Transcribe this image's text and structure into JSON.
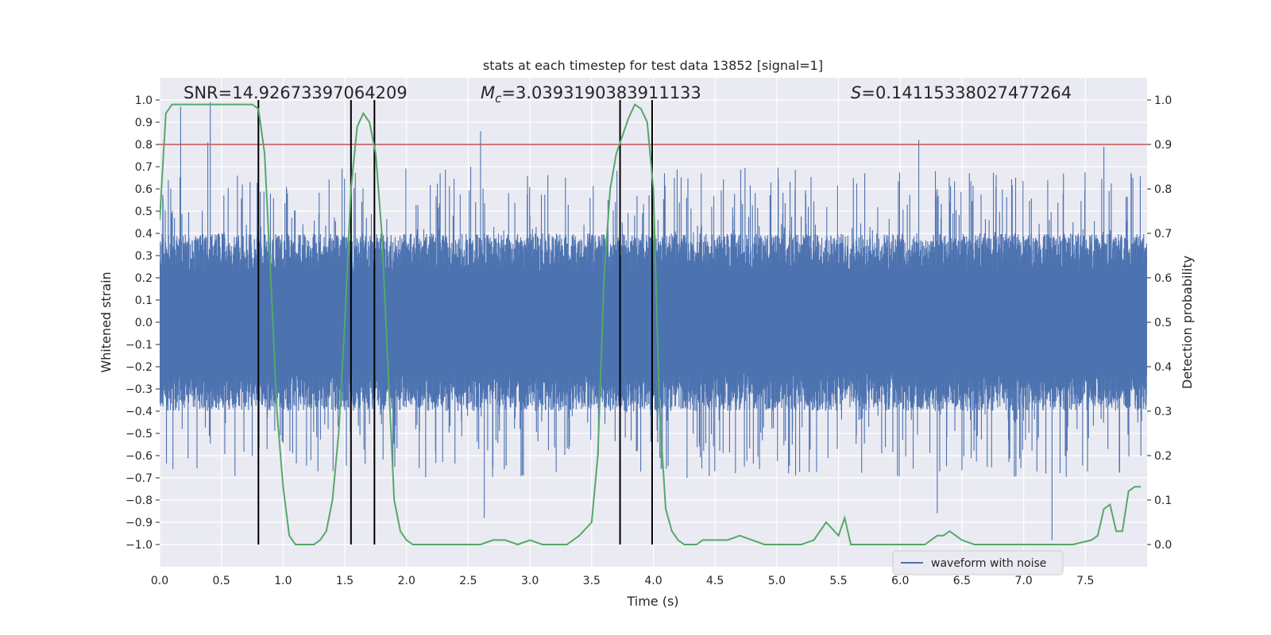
{
  "chart_data": {
    "type": "line",
    "title": "stats at each timestep for test data 13852 [signal=1]",
    "xlabel": "Time (s)",
    "ylabel": "Whitened strain",
    "y2label": "Detection probability",
    "xlim": [
      0,
      8
    ],
    "ylim": [
      -1.1,
      1.1
    ],
    "y2lim": [
      -0.05,
      1.05
    ],
    "xticks": [
      "0.0",
      "0.5",
      "1.0",
      "1.5",
      "2.0",
      "2.5",
      "3.0",
      "3.5",
      "4.0",
      "4.5",
      "5.0",
      "5.5",
      "6.0",
      "6.5",
      "7.0",
      "7.5"
    ],
    "yticks": [
      "1.0",
      "0.9",
      "0.8",
      "0.7",
      "0.6",
      "0.5",
      "0.4",
      "0.3",
      "0.2",
      "0.1",
      "0.0",
      "-0.1",
      "-0.2",
      "-0.3",
      "-0.4",
      "-0.5",
      "-0.6",
      "-0.7",
      "-0.8",
      "-0.9",
      "-1.0"
    ],
    "y2ticks": [
      "1.0",
      "0.9",
      "0.8",
      "0.7",
      "0.6",
      "0.5",
      "0.4",
      "0.3",
      "0.2",
      "0.1",
      "0.0"
    ],
    "grid": true,
    "legend": {
      "placement": "lower-right",
      "entries": [
        "waveform with noise"
      ]
    },
    "annotations": {
      "snr": "SNR=14.92673397064209",
      "mc_symbol": "M",
      "mc_subscript": "c",
      "mc_value": "=3.0393190383911133",
      "s_symbol": "S",
      "s_value": "=0.14115338027477264"
    },
    "threshold": 0.9,
    "vertical_lines": [
      0.8,
      1.55,
      1.74,
      3.73,
      3.99
    ],
    "waveform": {
      "name": "waveform with noise",
      "amplitude_band": [
        -0.4,
        0.4
      ],
      "peaks": [
        {
          "x": 0.17,
          "y": 0.97
        },
        {
          "x": 0.41,
          "y": 0.99
        },
        {
          "x": 0.39,
          "y": 0.81
        },
        {
          "x": 2.6,
          "y": 0.86
        },
        {
          "x": 6.15,
          "y": 0.82
        },
        {
          "x": 7.23,
          "y": -0.98
        },
        {
          "x": 2.63,
          "y": -0.88
        },
        {
          "x": 6.3,
          "y": -0.86
        },
        {
          "x": 7.65,
          "y": 0.79
        }
      ]
    },
    "probability": {
      "x": [
        0.0,
        0.05,
        0.1,
        0.15,
        0.2,
        0.3,
        0.4,
        0.5,
        0.6,
        0.7,
        0.75,
        0.8,
        0.85,
        0.9,
        0.95,
        1.0,
        1.05,
        1.1,
        1.15,
        1.2,
        1.25,
        1.3,
        1.35,
        1.4,
        1.45,
        1.5,
        1.55,
        1.6,
        1.65,
        1.7,
        1.75,
        1.8,
        1.85,
        1.9,
        1.95,
        2.0,
        2.05,
        2.1,
        2.15,
        2.2,
        2.3,
        2.4,
        2.5,
        2.6,
        2.7,
        2.8,
        2.9,
        3.0,
        3.1,
        3.2,
        3.3,
        3.4,
        3.5,
        3.55,
        3.6,
        3.65,
        3.7,
        3.75,
        3.8,
        3.85,
        3.9,
        3.95,
        4.0,
        4.05,
        4.1,
        4.15,
        4.2,
        4.25,
        4.3,
        4.35,
        4.4,
        4.5,
        4.6,
        4.7,
        4.8,
        4.9,
        5.0,
        5.1,
        5.2,
        5.3,
        5.4,
        5.5,
        5.55,
        5.6,
        5.7,
        5.8,
        5.9,
        6.0,
        6.1,
        6.2,
        6.3,
        6.35,
        6.4,
        6.45,
        6.5,
        6.6,
        6.7,
        6.8,
        7.0,
        7.2,
        7.4,
        7.55,
        7.6,
        7.65,
        7.7,
        7.75,
        7.8,
        7.85,
        7.9,
        7.95
      ],
      "y": [
        0.73,
        0.97,
        0.99,
        0.99,
        0.99,
        0.99,
        0.99,
        0.99,
        0.99,
        0.99,
        0.99,
        0.98,
        0.88,
        0.6,
        0.3,
        0.13,
        0.02,
        0.0,
        0.0,
        0.0,
        0.0,
        0.01,
        0.03,
        0.1,
        0.25,
        0.5,
        0.8,
        0.94,
        0.97,
        0.95,
        0.88,
        0.7,
        0.4,
        0.1,
        0.03,
        0.01,
        0.0,
        0.0,
        0.0,
        0.0,
        0.0,
        0.0,
        0.0,
        0.0,
        0.01,
        0.01,
        0.0,
        0.01,
        0.0,
        0.0,
        0.0,
        0.02,
        0.05,
        0.2,
        0.6,
        0.8,
        0.88,
        0.92,
        0.96,
        0.99,
        0.98,
        0.95,
        0.8,
        0.3,
        0.08,
        0.03,
        0.01,
        0.0,
        0.0,
        0.0,
        0.01,
        0.01,
        0.01,
        0.02,
        0.01,
        0.0,
        0.0,
        0.0,
        0.0,
        0.01,
        0.05,
        0.02,
        0.06,
        0.0,
        0.0,
        0.0,
        0.0,
        0.0,
        0.0,
        0.0,
        0.02,
        0.02,
        0.03,
        0.02,
        0.01,
        0.0,
        0.0,
        0.0,
        0.0,
        0.0,
        0.0,
        0.01,
        0.02,
        0.08,
        0.09,
        0.03,
        0.03,
        0.12,
        0.13,
        0.13
      ]
    },
    "colors": {
      "background": "#eaeaf2",
      "waveform": "#4c72b0",
      "probability": "#55a868",
      "threshold": "#c44e52",
      "vlines": "#000000",
      "grid": "#ffffff"
    }
  }
}
